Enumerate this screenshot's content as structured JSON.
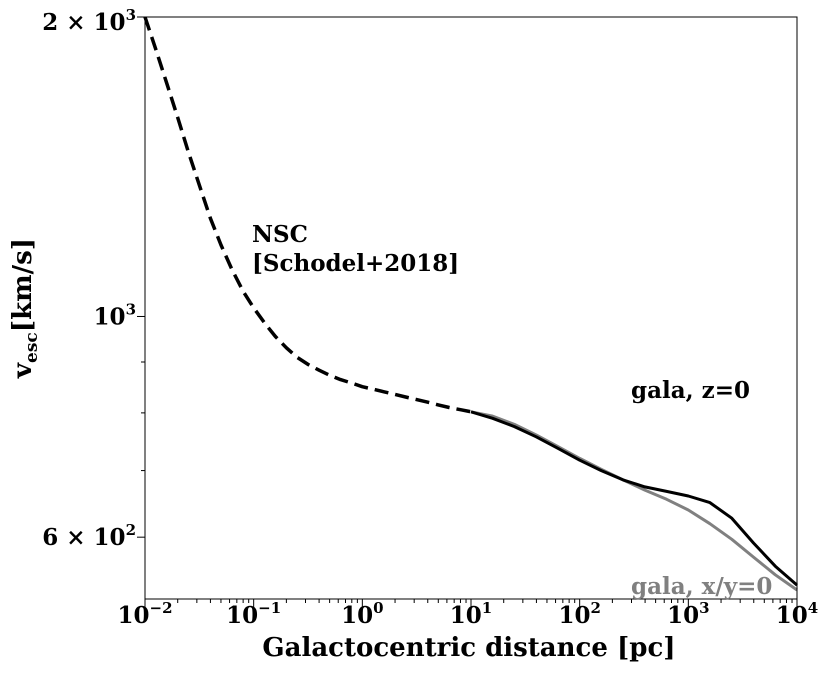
{
  "chart_data": {
    "type": "line",
    "title": "",
    "xlabel": "Galactocentric distance [pc]",
    "ylabel": {
      "main": "v",
      "sub": "esc",
      "unit": "[km/s]"
    },
    "xscale": "log",
    "yscale": "log",
    "xlim": [
      0.01,
      10000
    ],
    "ylim": [
      520,
      2000
    ],
    "grid": false,
    "x_ticks": [
      {
        "value": 0.01,
        "base": "10",
        "exp": "−2"
      },
      {
        "value": 0.1,
        "base": "10",
        "exp": "−1"
      },
      {
        "value": 1,
        "base": "10",
        "exp": "0"
      },
      {
        "value": 10,
        "base": "10",
        "exp": "1"
      },
      {
        "value": 100,
        "base": "10",
        "exp": "2"
      },
      {
        "value": 1000,
        "base": "10",
        "exp": "3"
      },
      {
        "value": 10000,
        "base": "10",
        "exp": "4"
      }
    ],
    "y_ticks": [
      {
        "value": 2000,
        "mantissa": "2 × ",
        "base": "10",
        "exp": "3"
      },
      {
        "value": 1000,
        "mantissa": "",
        "base": "10",
        "exp": "3"
      },
      {
        "value": 600,
        "mantissa": "6 × ",
        "base": "10",
        "exp": "2"
      }
    ],
    "y_minor_ticks": [
      700,
      800,
      900
    ],
    "series": [
      {
        "name": "NSC [Schodel+2018]",
        "label_lines": [
          "NSC",
          "[Schodel+2018]"
        ],
        "style": "dashed",
        "color": "#000000",
        "x": [
          0.01,
          0.0125,
          0.016,
          0.02,
          0.025,
          0.032,
          0.04,
          0.05,
          0.063,
          0.08,
          0.1,
          0.126,
          0.158,
          0.2,
          0.25,
          0.316,
          0.4,
          0.5,
          0.63,
          0.8,
          1,
          1.26,
          1.58,
          2,
          2.5,
          3.16,
          4,
          5,
          6.3,
          8,
          10
        ],
        "y": [
          2000,
          1860,
          1710,
          1585,
          1465,
          1350,
          1255,
          1180,
          1115,
          1060,
          1020,
          985,
          955,
          930,
          910,
          895,
          883,
          873,
          864,
          857,
          850,
          845,
          840,
          835,
          830,
          825,
          820,
          815,
          810,
          806,
          802
        ]
      },
      {
        "name": "gala, z=0",
        "style": "solid",
        "color": "#000000",
        "x": [
          10,
          15.8,
          25.1,
          39.8,
          63.1,
          100,
          158,
          251,
          398,
          631,
          1000,
          1580,
          2510,
          3980,
          6310,
          10000
        ],
        "y": [
          802,
          790,
          775,
          757,
          737,
          717,
          700,
          685,
          674,
          667,
          660,
          650,
          627,
          592,
          561,
          537
        ]
      },
      {
        "name": "gala, x/y=0",
        "style": "solid",
        "color": "#808080",
        "x": [
          10,
          15.8,
          25.1,
          39.8,
          63.1,
          100,
          158,
          251,
          398,
          631,
          1000,
          1580,
          2510,
          3980,
          6310,
          10000
        ],
        "y": [
          802,
          794,
          779,
          760,
          740,
          720,
          702,
          685,
          669,
          655,
          639,
          619,
          597,
          573,
          550,
          531
        ]
      }
    ]
  }
}
